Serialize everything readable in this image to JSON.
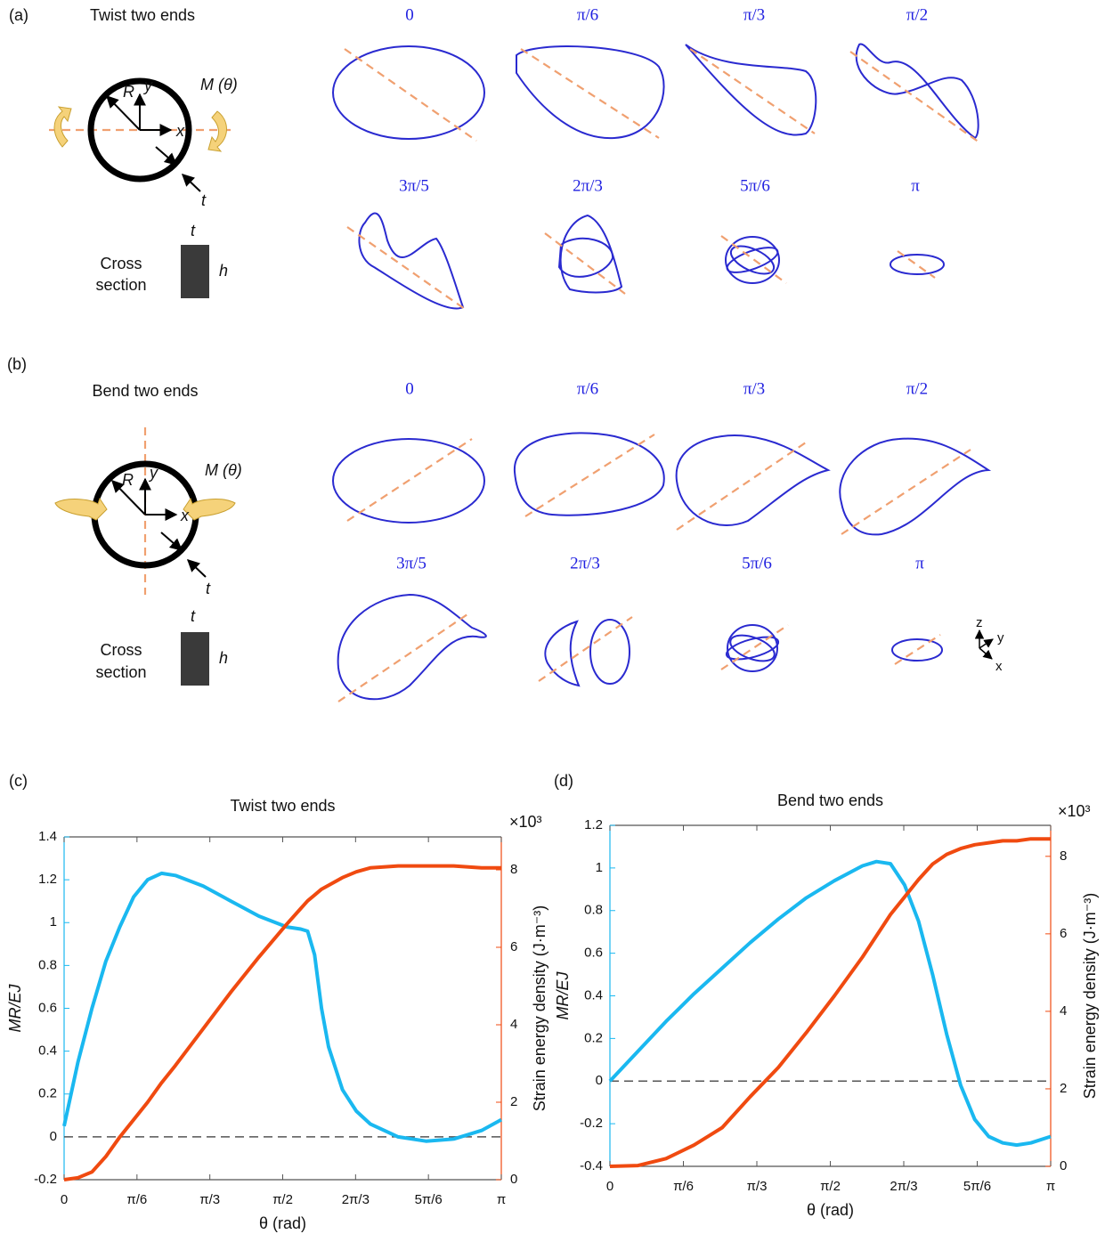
{
  "panels": [
    {
      "label": "(a)",
      "title": "Twist two ends",
      "moment": "M (θ)",
      "radius": "R",
      "axis_x": "x",
      "axis_y": "y",
      "thickness": "t",
      "cross_section": {
        "t": "t",
        "h": "h",
        "line1": "Cross",
        "line2": "section"
      },
      "angles": [
        "0",
        "π/6",
        "π/3",
        "π/2",
        "3π/5",
        "2π/3",
        "5π/6",
        "π"
      ]
    },
    {
      "label": "(b)",
      "title": "Bend two ends",
      "moment": "M (θ)",
      "radius": "R",
      "axis_x": "x",
      "axis_y": "y",
      "thickness": "t",
      "cross_section": {
        "t": "t",
        "h": "h",
        "line1": "Cross",
        "line2": "section"
      },
      "angles": [
        "0",
        "π/6",
        "π/3",
        "π/2",
        "3π/5",
        "2π/3",
        "5π/6",
        "π"
      ],
      "triad": [
        "z",
        "y",
        "x"
      ]
    }
  ],
  "chart_data": [
    {
      "type": "line",
      "panel_label": "(c)",
      "title": "Twist two ends",
      "xlabel": "θ (rad)",
      "ylabel": "MR/EJ",
      "y2label": "Strain energy density (J·m⁻³)",
      "y2_multiplier": "×10³",
      "xlim": [
        0,
        3.1416
      ],
      "xticks": [
        0,
        {
          "value": 0.5236,
          "label": "π/6"
        },
        {
          "value": 1.0472,
          "label": "π/3"
        },
        {
          "value": 1.5708,
          "label": "π/2"
        },
        {
          "value": 2.0944,
          "label": "2π/3"
        },
        {
          "value": 2.618,
          "label": "5π/6"
        },
        {
          "value": 3.1416,
          "label": "π"
        }
      ],
      "ylim": [
        -0.2,
        1.4
      ],
      "yticks": [
        -0.2,
        0,
        0.2,
        0.4,
        0.6,
        0.8,
        1,
        1.2,
        1.4
      ],
      "y2lim": [
        0,
        8.85
      ],
      "y2ticks": [
        0,
        2,
        4,
        6,
        8
      ],
      "hlines": [
        0
      ],
      "x": [
        0,
        0.1,
        0.2,
        0.3,
        0.4,
        0.5,
        0.6,
        0.7,
        0.8,
        1.0,
        1.2,
        1.4,
        1.6,
        1.7,
        1.75,
        1.8,
        1.85,
        1.9,
        2.0,
        2.1,
        2.2,
        2.4,
        2.6,
        2.8,
        3.0,
        3.1416
      ],
      "series": [
        {
          "color": "#1ab8f0",
          "axis": "y",
          "values": [
            0.05,
            0.35,
            0.6,
            0.82,
            0.98,
            1.12,
            1.2,
            1.23,
            1.22,
            1.17,
            1.1,
            1.03,
            0.98,
            0.97,
            0.96,
            0.85,
            0.6,
            0.42,
            0.22,
            0.12,
            0.06,
            0.0,
            -0.02,
            -0.01,
            0.03,
            0.08
          ]
        },
        {
          "color": "#f04a10",
          "axis": "y2",
          "values": [
            0,
            0.05,
            0.2,
            0.6,
            1.1,
            1.55,
            2.0,
            2.5,
            2.95,
            3.9,
            4.85,
            5.75,
            6.6,
            7.0,
            7.2,
            7.35,
            7.5,
            7.6,
            7.8,
            7.95,
            8.05,
            8.1,
            8.1,
            8.1,
            8.05,
            8.05
          ]
        }
      ]
    },
    {
      "type": "line",
      "panel_label": "(d)",
      "title": "Bend two ends",
      "xlabel": "θ (rad)",
      "ylabel": "MR/EJ",
      "y2label": "Strain energy density (J·m⁻³)",
      "y2_multiplier": "×10³",
      "xlim": [
        0,
        3.1416
      ],
      "xticks": [
        0,
        {
          "value": 0.5236,
          "label": "π/6"
        },
        {
          "value": 1.0472,
          "label": "π/3"
        },
        {
          "value": 1.5708,
          "label": "π/2"
        },
        {
          "value": 2.0944,
          "label": "2π/3"
        },
        {
          "value": 2.618,
          "label": "5π/6"
        },
        {
          "value": 3.1416,
          "label": "π"
        }
      ],
      "ylim": [
        -0.4,
        1.2
      ],
      "yticks": [
        -0.4,
        -0.2,
        0,
        0.2,
        0.4,
        0.6,
        0.8,
        1,
        1.2
      ],
      "y2lim": [
        0,
        8.8
      ],
      "y2ticks": [
        0,
        2,
        4,
        6,
        8
      ],
      "hlines": [
        0
      ],
      "x": [
        0,
        0.2,
        0.4,
        0.6,
        0.8,
        1.0,
        1.2,
        1.4,
        1.6,
        1.8,
        1.9,
        2.0,
        2.1,
        2.2,
        2.3,
        2.4,
        2.5,
        2.6,
        2.7,
        2.8,
        2.9,
        3.0,
        3.1416
      ],
      "series": [
        {
          "color": "#1ab8f0",
          "axis": "y",
          "values": [
            0,
            0.14,
            0.28,
            0.41,
            0.53,
            0.65,
            0.76,
            0.86,
            0.94,
            1.01,
            1.03,
            1.02,
            0.92,
            0.75,
            0.5,
            0.22,
            -0.02,
            -0.18,
            -0.26,
            -0.29,
            -0.3,
            -0.29,
            -0.26
          ]
        },
        {
          "color": "#f04a10",
          "axis": "y2",
          "values": [
            0,
            0.02,
            0.2,
            0.55,
            1.0,
            1.8,
            2.55,
            3.45,
            4.4,
            5.4,
            5.95,
            6.5,
            6.95,
            7.4,
            7.8,
            8.05,
            8.2,
            8.3,
            8.35,
            8.4,
            8.4,
            8.45,
            8.45
          ]
        }
      ]
    }
  ]
}
